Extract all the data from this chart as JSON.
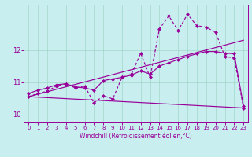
{
  "title": "",
  "xlabel": "Windchill (Refroidissement éolien,°C)",
  "ylabel": "",
  "bg_color": "#c8eef0",
  "line_color": "#990099",
  "xlim": [
    -0.5,
    23.5
  ],
  "ylim": [
    9.75,
    13.4
  ],
  "xticks": [
    0,
    1,
    2,
    3,
    4,
    5,
    6,
    7,
    8,
    9,
    10,
    11,
    12,
    13,
    14,
    15,
    16,
    17,
    18,
    19,
    20,
    21,
    22,
    23
  ],
  "yticks": [
    10,
    11,
    12
  ],
  "line1_x": [
    0,
    1,
    2,
    3,
    4,
    5,
    6,
    7,
    8,
    9,
    10,
    11,
    12,
    13,
    14,
    15,
    16,
    17,
    18,
    19,
    20,
    21,
    22,
    23
  ],
  "line1_y": [
    10.65,
    10.75,
    10.82,
    10.92,
    10.95,
    10.85,
    10.82,
    10.75,
    11.05,
    11.1,
    11.15,
    11.22,
    11.35,
    11.25,
    11.5,
    11.6,
    11.7,
    11.8,
    11.88,
    11.95,
    11.95,
    11.9,
    11.88,
    10.25
  ],
  "line2_x": [
    0,
    1,
    2,
    3,
    4,
    5,
    6,
    7,
    8,
    9,
    10,
    11,
    12,
    13,
    14,
    15,
    16,
    17,
    18,
    19,
    20,
    21,
    22,
    23
  ],
  "line2_y": [
    10.55,
    10.65,
    10.72,
    10.88,
    10.95,
    10.82,
    10.88,
    10.35,
    10.58,
    10.48,
    11.15,
    11.25,
    11.9,
    11.15,
    12.65,
    13.05,
    12.6,
    13.1,
    12.75,
    12.7,
    12.55,
    11.8,
    11.75,
    10.2
  ],
  "line3_x": [
    0,
    23
  ],
  "line3_y": [
    10.55,
    10.2
  ],
  "line4_x": [
    0,
    23
  ],
  "line4_y": [
    10.55,
    12.3
  ],
  "grid_color": "#a0d8c8",
  "marker": "D",
  "markersize": 2.5,
  "linewidth": 0.85
}
